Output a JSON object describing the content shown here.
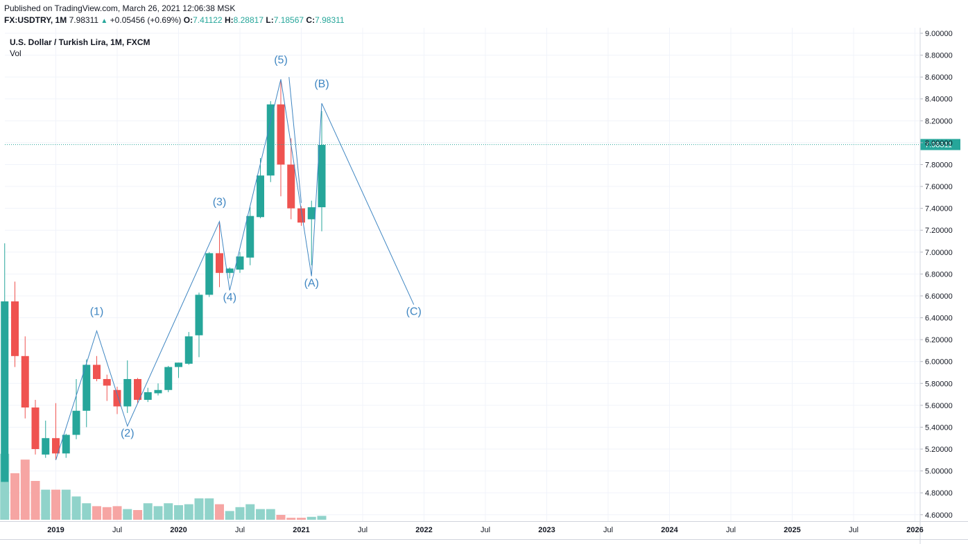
{
  "header": {
    "published": "Published on TradingView.com, March 26, 2021 12:06:38 MSK",
    "symbol": "FX:USDTRY, 1M",
    "last": "7.98311",
    "change": "+0.05456 (+0.69%)",
    "o_label": "O:",
    "o_value": "7.41122",
    "h_label": "H:",
    "h_value": "8.28817",
    "l_label": "L:",
    "l_value": "7.18567",
    "c_label": "C:",
    "c_value": "7.98311"
  },
  "legend": {
    "name": "U.S. Dollar / Turkish Lira, 1M, FXCM",
    "vol": "Vol"
  },
  "colors": {
    "up": "#26a69a",
    "down": "#ef5350",
    "vol_up": "#90d3ca",
    "vol_down": "#f6a5a3",
    "wave": "#3f86c2",
    "grid": "#f0f3fa"
  },
  "chart_data": {
    "type": "candlestick",
    "interval": "1M",
    "ylim": [
      4.55,
      9.0
    ],
    "yticks": [
      "9.00000",
      "8.80000",
      "8.60000",
      "8.40000",
      "8.20000",
      "8.00000",
      "7.80000",
      "7.60000",
      "7.40000",
      "7.20000",
      "7.00000",
      "6.80000",
      "6.60000",
      "6.40000",
      "6.20000",
      "6.00000",
      "5.80000",
      "5.60000",
      "5.40000",
      "5.20000",
      "5.00000",
      "4.80000",
      "4.60000"
    ],
    "last_price": "7.98311",
    "x_labels": [
      {
        "t": 0,
        "label": "2019",
        "bold": true
      },
      {
        "t": 6,
        "label": "Jul",
        "bold": false
      },
      {
        "t": 12,
        "label": "2020",
        "bold": true
      },
      {
        "t": 18,
        "label": "Jul",
        "bold": false
      },
      {
        "t": 24,
        "label": "2021",
        "bold": true
      },
      {
        "t": 30,
        "label": "Jul",
        "bold": false
      },
      {
        "t": 36,
        "label": "2022",
        "bold": true
      },
      {
        "t": 42,
        "label": "Jul",
        "bold": false
      },
      {
        "t": 48,
        "label": "2023",
        "bold": true
      },
      {
        "t": 54,
        "label": "Jul",
        "bold": false
      },
      {
        "t": 60,
        "label": "2024",
        "bold": true
      },
      {
        "t": 66,
        "label": "Jul",
        "bold": false
      },
      {
        "t": 72,
        "label": "2025",
        "bold": true
      },
      {
        "t": 78,
        "label": "Jul",
        "bold": false
      },
      {
        "t": 84,
        "label": "2026",
        "bold": true
      }
    ],
    "candles": [
      {
        "t": -5,
        "o": 4.9,
        "h": 7.08,
        "l": 4.9,
        "c": 6.55
      },
      {
        "t": -4,
        "o": 6.55,
        "h": 6.73,
        "l": 5.95,
        "c": 6.05
      },
      {
        "t": -3,
        "o": 6.05,
        "h": 6.23,
        "l": 5.48,
        "c": 5.58
      },
      {
        "t": -2,
        "o": 5.58,
        "h": 5.65,
        "l": 5.15,
        "c": 5.2
      },
      {
        "t": -1,
        "o": 5.15,
        "h": 5.46,
        "l": 5.12,
        "c": 5.3
      },
      {
        "t": 0,
        "o": 5.3,
        "h": 5.62,
        "l": 5.1,
        "c": 5.16
      },
      {
        "t": 1,
        "o": 5.16,
        "h": 5.34,
        "l": 5.12,
        "c": 5.33
      },
      {
        "t": 2,
        "o": 5.33,
        "h": 5.84,
        "l": 5.29,
        "c": 5.55
      },
      {
        "t": 3,
        "o": 5.55,
        "h": 6.02,
        "l": 5.4,
        "c": 5.97
      },
      {
        "t": 4,
        "o": 5.97,
        "h": 6.05,
        "l": 5.82,
        "c": 5.84
      },
      {
        "t": 5,
        "o": 5.84,
        "h": 5.88,
        "l": 5.64,
        "c": 5.78
      },
      {
        "t": 6,
        "o": 5.74,
        "h": 5.77,
        "l": 5.52,
        "c": 5.59
      },
      {
        "t": 7,
        "o": 5.59,
        "h": 6.01,
        "l": 5.53,
        "c": 5.84
      },
      {
        "t": 8,
        "o": 5.84,
        "h": 5.85,
        "l": 5.62,
        "c": 5.65
      },
      {
        "t": 9,
        "o": 5.65,
        "h": 5.76,
        "l": 5.63,
        "c": 5.72
      },
      {
        "t": 10,
        "o": 5.71,
        "h": 5.8,
        "l": 5.69,
        "c": 5.74
      },
      {
        "t": 11,
        "o": 5.74,
        "h": 5.96,
        "l": 5.72,
        "c": 5.95
      },
      {
        "t": 12,
        "o": 5.95,
        "h": 5.99,
        "l": 5.85,
        "c": 5.99
      },
      {
        "t": 13,
        "o": 5.98,
        "h": 6.27,
        "l": 5.97,
        "c": 6.23
      },
      {
        "t": 14,
        "o": 6.24,
        "h": 6.63,
        "l": 6.04,
        "c": 6.61
      },
      {
        "t": 15,
        "o": 6.61,
        "h": 7.0,
        "l": 6.59,
        "c": 6.99
      },
      {
        "t": 16,
        "o": 6.99,
        "h": 7.27,
        "l": 6.68,
        "c": 6.81
      },
      {
        "t": 17,
        "o": 6.81,
        "h": 6.86,
        "l": 6.76,
        "c": 6.85
      },
      {
        "t": 18,
        "o": 6.84,
        "h": 7.0,
        "l": 6.81,
        "c": 6.96
      },
      {
        "t": 19,
        "o": 6.95,
        "h": 7.41,
        "l": 6.88,
        "c": 7.33
      },
      {
        "t": 20,
        "o": 7.32,
        "h": 7.86,
        "l": 7.31,
        "c": 7.7
      },
      {
        "t": 21,
        "o": 7.7,
        "h": 8.38,
        "l": 7.64,
        "c": 8.35
      },
      {
        "t": 22,
        "o": 8.35,
        "h": 8.58,
        "l": 7.51,
        "c": 7.8
      },
      {
        "t": 23,
        "o": 7.8,
        "h": 8.04,
        "l": 7.3,
        "c": 7.4
      },
      {
        "t": 24,
        "o": 7.4,
        "h": 7.42,
        "l": 7.24,
        "c": 7.27
      },
      {
        "t": 25,
        "o": 7.3,
        "h": 7.47,
        "l": 6.88,
        "c": 7.41
      },
      {
        "t": 26,
        "o": 7.41,
        "h": 8.29,
        "l": 7.19,
        "c": 7.98
      }
    ],
    "volume": {
      "vmax": 1.0,
      "bars": [
        {
          "t": -5,
          "v": 0.68,
          "dir": "up"
        },
        {
          "t": -4,
          "v": 0.48,
          "dir": "down"
        },
        {
          "t": -3,
          "v": 0.62,
          "dir": "down"
        },
        {
          "t": -2,
          "v": 0.4,
          "dir": "down"
        },
        {
          "t": -1,
          "v": 0.31,
          "dir": "up"
        },
        {
          "t": 0,
          "v": 0.31,
          "dir": "down"
        },
        {
          "t": 1,
          "v": 0.31,
          "dir": "up"
        },
        {
          "t": 2,
          "v": 0.24,
          "dir": "up"
        },
        {
          "t": 3,
          "v": 0.17,
          "dir": "up"
        },
        {
          "t": 4,
          "v": 0.14,
          "dir": "down"
        },
        {
          "t": 5,
          "v": 0.13,
          "dir": "down"
        },
        {
          "t": 6,
          "v": 0.14,
          "dir": "down"
        },
        {
          "t": 7,
          "v": 0.11,
          "dir": "up"
        },
        {
          "t": 8,
          "v": 0.1,
          "dir": "down"
        },
        {
          "t": 9,
          "v": 0.17,
          "dir": "up"
        },
        {
          "t": 10,
          "v": 0.14,
          "dir": "up"
        },
        {
          "t": 11,
          "v": 0.17,
          "dir": "up"
        },
        {
          "t": 12,
          "v": 0.15,
          "dir": "up"
        },
        {
          "t": 13,
          "v": 0.16,
          "dir": "up"
        },
        {
          "t": 14,
          "v": 0.22,
          "dir": "up"
        },
        {
          "t": 15,
          "v": 0.22,
          "dir": "up"
        },
        {
          "t": 16,
          "v": 0.16,
          "dir": "down"
        },
        {
          "t": 17,
          "v": 0.09,
          "dir": "up"
        },
        {
          "t": 18,
          "v": 0.13,
          "dir": "up"
        },
        {
          "t": 19,
          "v": 0.16,
          "dir": "up"
        },
        {
          "t": 20,
          "v": 0.11,
          "dir": "up"
        },
        {
          "t": 21,
          "v": 0.11,
          "dir": "up"
        },
        {
          "t": 22,
          "v": 0.05,
          "dir": "down"
        },
        {
          "t": 23,
          "v": 0.02,
          "dir": "down"
        },
        {
          "t": 24,
          "v": 0.02,
          "dir": "down"
        },
        {
          "t": 25,
          "v": 0.03,
          "dir": "up"
        },
        {
          "t": 26,
          "v": 0.04,
          "dir": "up"
        }
      ]
    },
    "wave_line": [
      {
        "t": 0,
        "p": 5.1
      },
      {
        "t": 4,
        "p": 6.28
      },
      {
        "t": 7,
        "p": 5.41
      },
      {
        "t": 16,
        "p": 7.28
      },
      {
        "t": 17,
        "p": 6.65
      },
      {
        "t": 22,
        "p": 8.58
      },
      {
        "t": 25,
        "p": 6.78
      },
      {
        "t": 26,
        "p": 8.36
      },
      {
        "t": 35,
        "p": 6.52
      }
    ],
    "wave_segment": [
      {
        "t": 22.8,
        "p": 8.6
      },
      {
        "t": 24.0,
        "p": 7.45
      }
    ],
    "wave_labels": [
      {
        "text": "(1)",
        "t": 4,
        "p": 6.4
      },
      {
        "text": "(2)",
        "t": 7,
        "p": 5.29
      },
      {
        "text": "(3)",
        "t": 16,
        "p": 7.4
      },
      {
        "text": "(4)",
        "t": 17,
        "p": 6.53
      },
      {
        "text": "(5)",
        "t": 22,
        "p": 8.7
      },
      {
        "text": "(A)",
        "t": 25,
        "p": 6.66
      },
      {
        "text": "(B)",
        "t": 26,
        "p": 8.48
      },
      {
        "text": "(C)",
        "t": 35,
        "p": 6.4
      }
    ]
  }
}
